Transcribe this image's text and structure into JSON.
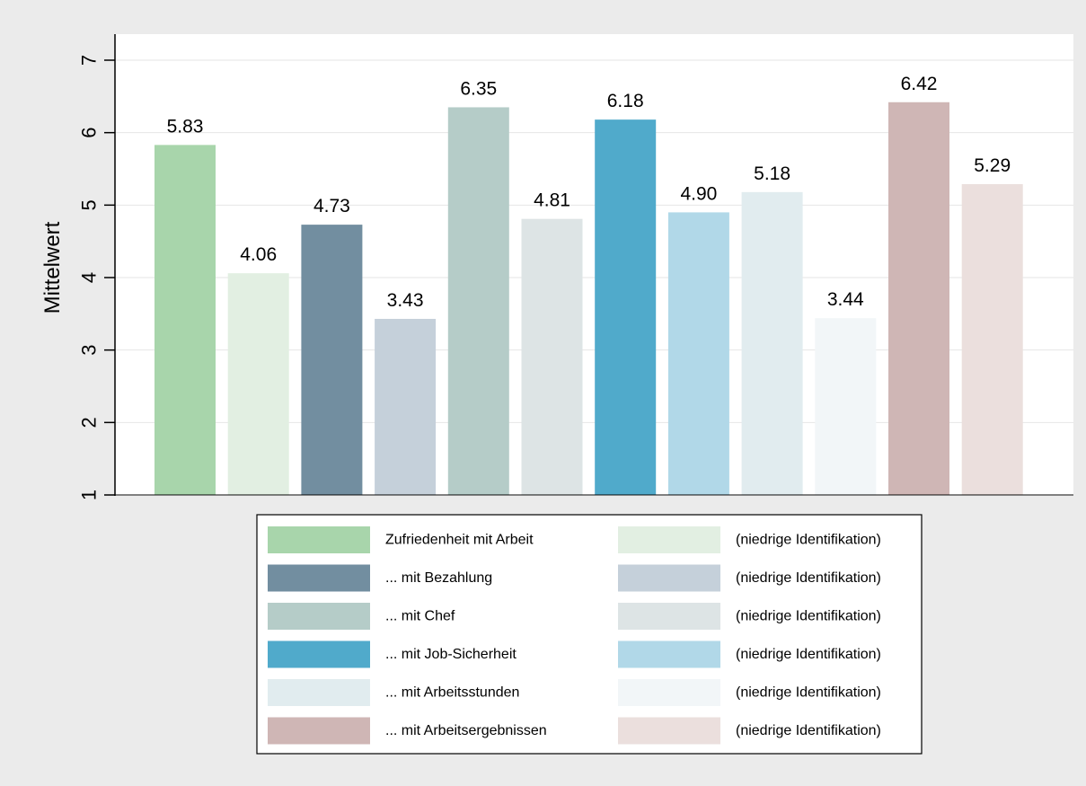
{
  "chart_data": {
    "type": "bar",
    "title": "",
    "xlabel": "",
    "ylabel": "Mittelwert",
    "ylim": [
      1,
      7
    ],
    "yticks": [
      1,
      2,
      3,
      4,
      5,
      6,
      7
    ],
    "grid": true,
    "legend_position": "bottom",
    "series": [
      {
        "name": "Zufriedenheit mit Arbeit",
        "value": 5.83,
        "label": "5.83",
        "color": "#a8d5ab"
      },
      {
        "name": "(niedrige Identifikation)",
        "value": 4.06,
        "label": "4.06",
        "color": "#e2efe2"
      },
      {
        "name": "... mit Bezahlung",
        "value": 4.73,
        "label": "4.73",
        "color": "#728ea0"
      },
      {
        "name": "(niedrige Identifikation)",
        "value": 3.43,
        "label": "3.43",
        "color": "#c5d0da"
      },
      {
        "name": "... mit Chef",
        "value": 6.35,
        "label": "6.35",
        "color": "#b5ccc8"
      },
      {
        "name": "(niedrige Identifikation)",
        "value": 4.81,
        "label": "4.81",
        "color": "#dde4e5"
      },
      {
        "name": "... mit Job-Sicherheit",
        "value": 6.18,
        "label": "6.18",
        "color": "#50aacb"
      },
      {
        "name": "(niedrige Identifikation)",
        "value": 4.9,
        "label": "4.90",
        "color": "#b1d8e8"
      },
      {
        "name": "... mit Arbeitsstunden",
        "value": 5.18,
        "label": "5.18",
        "color": "#e1ecef"
      },
      {
        "name": "(niedrige Identifikation)",
        "value": 3.44,
        "label": "3.44",
        "color": "#f2f6f8"
      },
      {
        "name": "... mit Arbeitsergebnissen",
        "value": 6.42,
        "label": "6.42",
        "color": "#cfb6b5"
      },
      {
        "name": "(niedrige Identifikation)",
        "value": 5.29,
        "label": "5.29",
        "color": "#ebdfdd"
      }
    ]
  }
}
